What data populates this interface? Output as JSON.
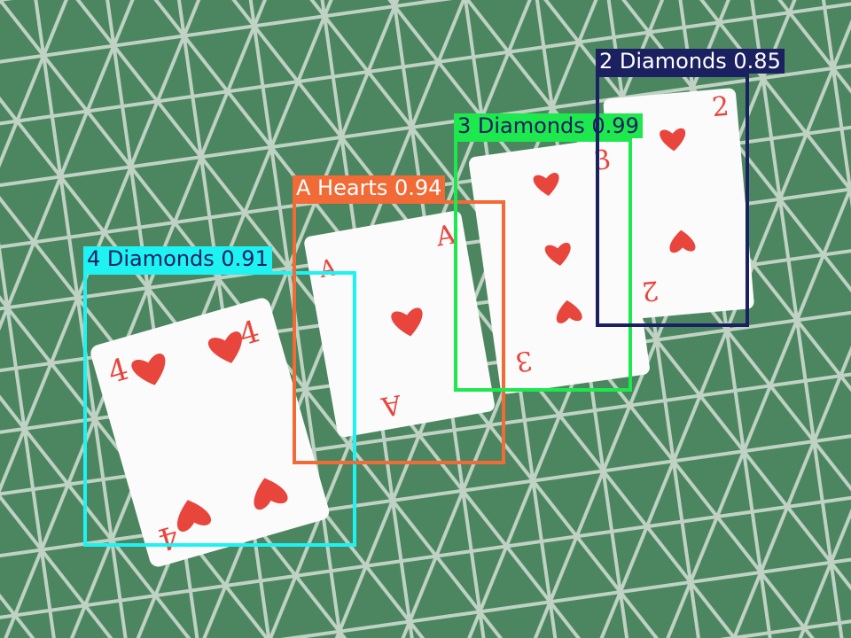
{
  "scene": {
    "background_color": "#4f8a63",
    "pattern_color": "#eef3ee",
    "card_color": "#fbfbfb",
    "suit_color": "#e8453d"
  },
  "cards": [
    {
      "rank": "4",
      "suit": "hearts-icon"
    },
    {
      "rank": "A",
      "suit": "hearts-icon"
    },
    {
      "rank": "3",
      "suit": "hearts-icon"
    },
    {
      "rank": "2",
      "suit": "hearts-icon"
    }
  ],
  "detections": [
    {
      "label": "4 Diamonds 0.91",
      "class": "4 Diamonds",
      "confidence": 0.91,
      "color": "#1df3f3",
      "text_color": "#1a2060"
    },
    {
      "label": "A Hearts 0.94",
      "class": "A Hearts",
      "confidence": 0.94,
      "color": "#f26a36",
      "text_color": "#ffffff"
    },
    {
      "label": "3 Diamonds 0.99",
      "class": "3 Diamonds",
      "confidence": 0.99,
      "color": "#1de84e",
      "text_color": "#1a2060"
    },
    {
      "label": "2 Diamonds 0.85",
      "class": "2 Diamonds",
      "confidence": 0.85,
      "color": "#1a2060",
      "text_color": "#ffffff"
    }
  ]
}
